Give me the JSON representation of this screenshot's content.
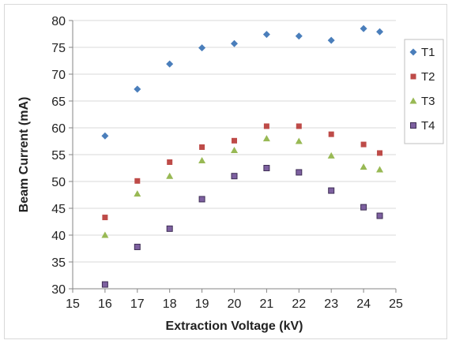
{
  "chart_data": {
    "type": "scatter",
    "title": "",
    "xlabel": "Extraction Voltage (kV)",
    "ylabel": "Beam Current (mA)",
    "xlim": [
      15,
      25
    ],
    "ylim": [
      30,
      80
    ],
    "xticks": [
      15,
      16,
      17,
      18,
      19,
      20,
      21,
      22,
      23,
      24,
      25
    ],
    "yticks": [
      30,
      35,
      40,
      45,
      50,
      55,
      60,
      65,
      70,
      75,
      80
    ],
    "grid": "horizontal",
    "legend_position": "right",
    "series": [
      {
        "name": "T1",
        "color": "#4a7ebb",
        "marker": "diamond",
        "points": [
          [
            16,
            58.5
          ],
          [
            17,
            67.2
          ],
          [
            18,
            71.9
          ],
          [
            19,
            74.9
          ],
          [
            20,
            75.7
          ],
          [
            21,
            77.4
          ],
          [
            22,
            77.1
          ],
          [
            23,
            76.3
          ],
          [
            24,
            78.5
          ],
          [
            24.5,
            77.9
          ]
        ]
      },
      {
        "name": "T2",
        "color": "#be4b48",
        "marker": "square",
        "points": [
          [
            16,
            43.3
          ],
          [
            17,
            50.1
          ],
          [
            18,
            53.6
          ],
          [
            19,
            56.4
          ],
          [
            20,
            57.6
          ],
          [
            21,
            60.3
          ],
          [
            22,
            60.3
          ],
          [
            23,
            58.8
          ],
          [
            24,
            56.9
          ],
          [
            24.5,
            55.3
          ]
        ]
      },
      {
        "name": "T3",
        "color": "#98b954",
        "marker": "triangle",
        "points": [
          [
            16,
            40.0
          ],
          [
            17,
            47.7
          ],
          [
            18,
            51.0
          ],
          [
            19,
            53.9
          ],
          [
            20,
            55.8
          ],
          [
            21,
            58.0
          ],
          [
            22,
            57.5
          ],
          [
            23,
            54.8
          ],
          [
            24,
            52.7
          ],
          [
            24.5,
            52.2
          ]
        ]
      },
      {
        "name": "T4",
        "color": "#7d60a0",
        "marker": "square",
        "points": [
          [
            16,
            30.8
          ],
          [
            17,
            37.8
          ],
          [
            18,
            41.2
          ],
          [
            19,
            46.7
          ],
          [
            20,
            51.0
          ],
          [
            21,
            52.5
          ],
          [
            22,
            51.7
          ],
          [
            23,
            48.3
          ],
          [
            24,
            45.2
          ],
          [
            24.5,
            43.6
          ]
        ]
      }
    ]
  }
}
